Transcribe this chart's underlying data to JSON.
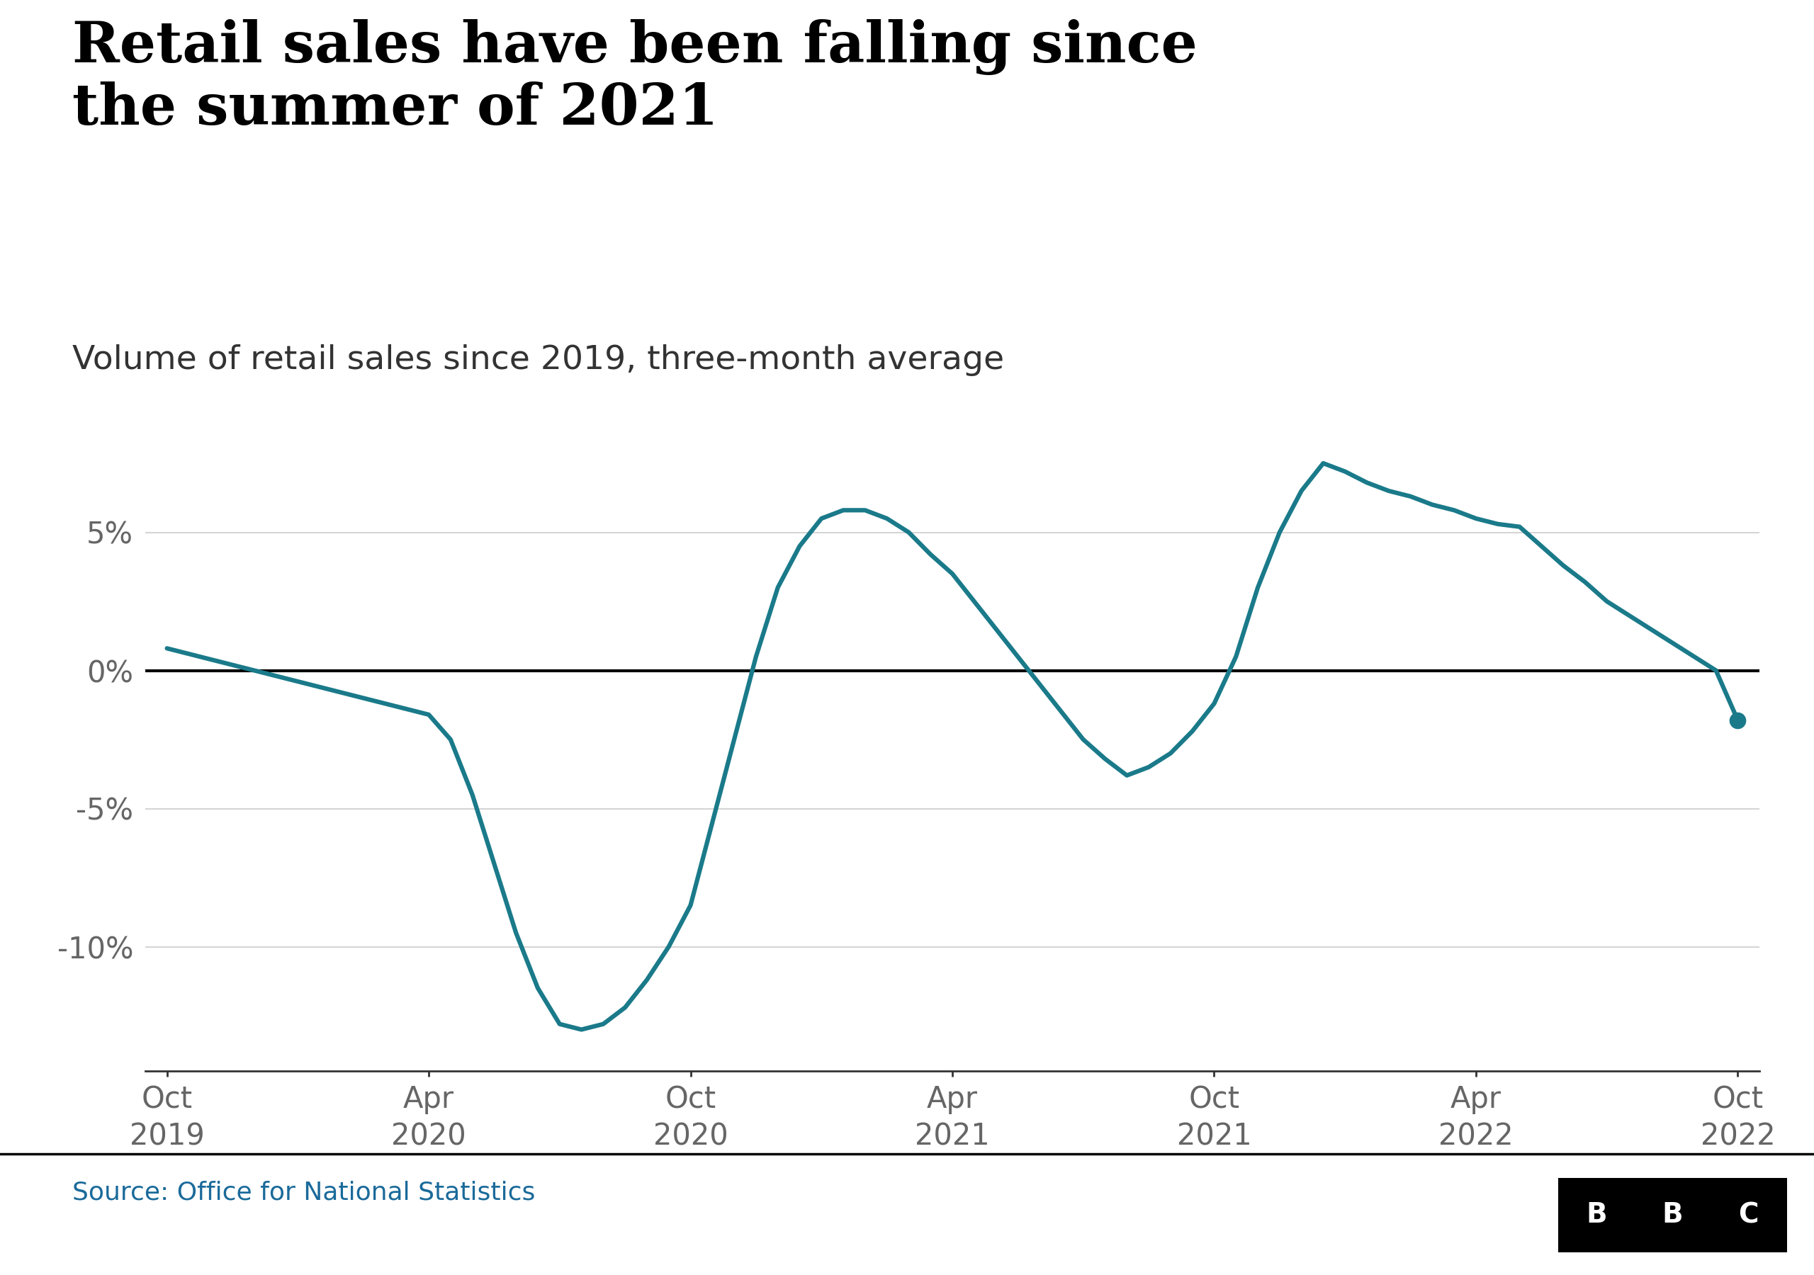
{
  "title": "Retail sales have been falling since\nthe summer of 2021",
  "subtitle": "Volume of retail sales since 2019, three-month average",
  "source": "Source: Office for National Statistics",
  "line_color": "#1a7a8a",
  "zero_line_color": "#000000",
  "background_color": "#ffffff",
  "title_fontsize": 58,
  "subtitle_fontsize": 34,
  "source_fontsize": 26,
  "tick_fontsize": 30,
  "ylim": [
    -14.5,
    9.5
  ],
  "yticks": [
    -10,
    -5,
    0,
    5
  ],
  "ytick_labels": [
    "-10%",
    "-5%",
    "0%",
    "5%"
  ],
  "x_values": [
    0,
    0.5,
    1,
    1.5,
    2,
    2.5,
    3,
    3.5,
    4,
    4.5,
    5,
    5.5,
    6,
    6.5,
    7,
    7.5,
    8,
    8.5,
    9,
    9.5,
    10,
    10.5,
    11,
    11.5,
    12,
    12.5,
    13,
    13.5,
    14,
    14.5,
    15,
    15.5,
    16,
    16.5,
    17,
    17.5,
    18,
    18.5,
    19,
    19.5,
    20,
    20.5,
    21,
    21.5,
    22,
    22.5,
    23,
    23.5,
    24,
    24.5,
    25,
    25.5,
    26,
    26.5,
    27,
    27.5,
    28,
    28.5,
    29,
    29.5,
    30,
    30.5,
    31,
    31.5,
    32,
    32.5,
    33,
    33.5,
    34,
    34.5,
    35,
    35.5,
    36
  ],
  "y_values": [
    0.8,
    0.6,
    0.4,
    0.2,
    0.0,
    -0.2,
    -0.4,
    -0.6,
    -0.8,
    -1.0,
    -1.2,
    -1.4,
    -1.6,
    -2.5,
    -4.5,
    -7.0,
    -9.5,
    -11.5,
    -12.8,
    -13.0,
    -12.8,
    -12.2,
    -11.2,
    -10.0,
    -8.5,
    -5.5,
    -2.5,
    0.5,
    3.0,
    4.5,
    5.5,
    5.8,
    5.8,
    5.5,
    5.0,
    4.2,
    3.5,
    2.5,
    1.5,
    0.5,
    -0.5,
    -1.5,
    -2.5,
    -3.2,
    -3.8,
    -3.5,
    -3.0,
    -2.2,
    -1.2,
    0.5,
    3.0,
    5.0,
    6.5,
    7.5,
    7.2,
    6.8,
    6.5,
    6.3,
    6.0,
    5.8,
    5.5,
    5.3,
    5.2,
    4.5,
    3.8,
    3.2,
    2.5,
    2.0,
    1.5,
    1.0,
    0.5,
    0.0,
    -1.8
  ],
  "xtick_positions": [
    0,
    6,
    12,
    18,
    24,
    30,
    36
  ],
  "xtick_labels": [
    "Oct\n2019",
    "Apr\n2020",
    "Oct\n2020",
    "Apr\n2021",
    "Oct\n2021",
    "Apr\n2022",
    "Oct\n2022"
  ],
  "endpoint_marker_size": 16,
  "line_width": 4.5,
  "bbc_box_color": "#000000",
  "bbc_text_color": "#ffffff"
}
